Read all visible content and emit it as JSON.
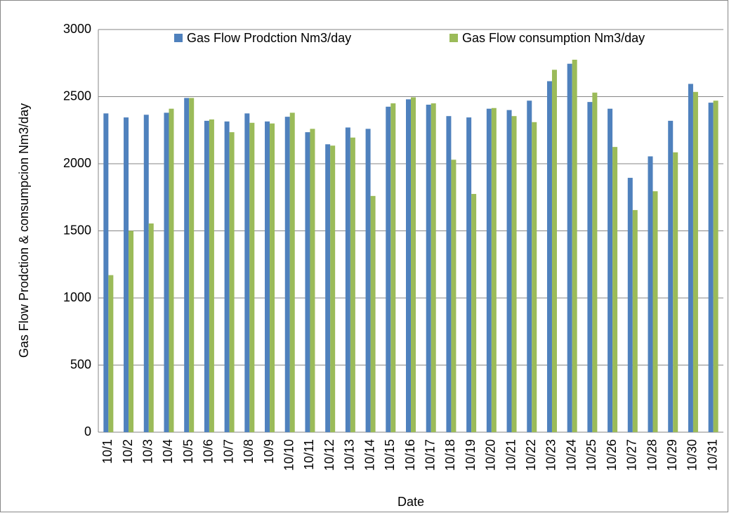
{
  "chart_data": {
    "type": "bar",
    "x_label": "Date",
    "y_label": "Gas Flow Prodction & consumpcion Nm3/day",
    "categories": [
      "10/1",
      "10/2",
      "10/3",
      "10/4",
      "10/5",
      "10/6",
      "10/7",
      "10/8",
      "10/9",
      "10/10",
      "10/11",
      "10/12",
      "10/13",
      "10/14",
      "10/15",
      "10/16",
      "10/17",
      "10/18",
      "10/19",
      "10/20",
      "10/21",
      "10/22",
      "10/23",
      "10/24",
      "10/25",
      "10/26",
      "10/27",
      "10/28",
      "10/29",
      "10/30",
      "10/31"
    ],
    "series": [
      {
        "name": "Gas Flow Prodction Nm3/day",
        "color": "#4f81bd",
        "values": [
          2375,
          2345,
          2365,
          2380,
          2490,
          2320,
          2315,
          2375,
          2315,
          2350,
          2235,
          2145,
          2270,
          2260,
          2425,
          2480,
          2440,
          2355,
          2345,
          2410,
          2400,
          2470,
          2615,
          2745,
          2460,
          2410,
          1895,
          2055,
          2320,
          2595,
          2455
        ]
      },
      {
        "name": "Gas Flow consumption Nm3/day",
        "color": "#9bbb59",
        "values": [
          1170,
          1500,
          1555,
          2410,
          2490,
          2330,
          2235,
          2305,
          2300,
          2380,
          2260,
          2135,
          2195,
          1760,
          2450,
          2495,
          2450,
          2030,
          1775,
          2415,
          2355,
          2310,
          2700,
          2775,
          2530,
          2125,
          1655,
          1795,
          2085,
          2535,
          2470
        ]
      }
    ],
    "ylim": [
      0,
      3000
    ],
    "yticks": [
      0,
      500,
      1000,
      1500,
      2000,
      2500,
      3000
    ],
    "grid": true,
    "legend": "top"
  }
}
